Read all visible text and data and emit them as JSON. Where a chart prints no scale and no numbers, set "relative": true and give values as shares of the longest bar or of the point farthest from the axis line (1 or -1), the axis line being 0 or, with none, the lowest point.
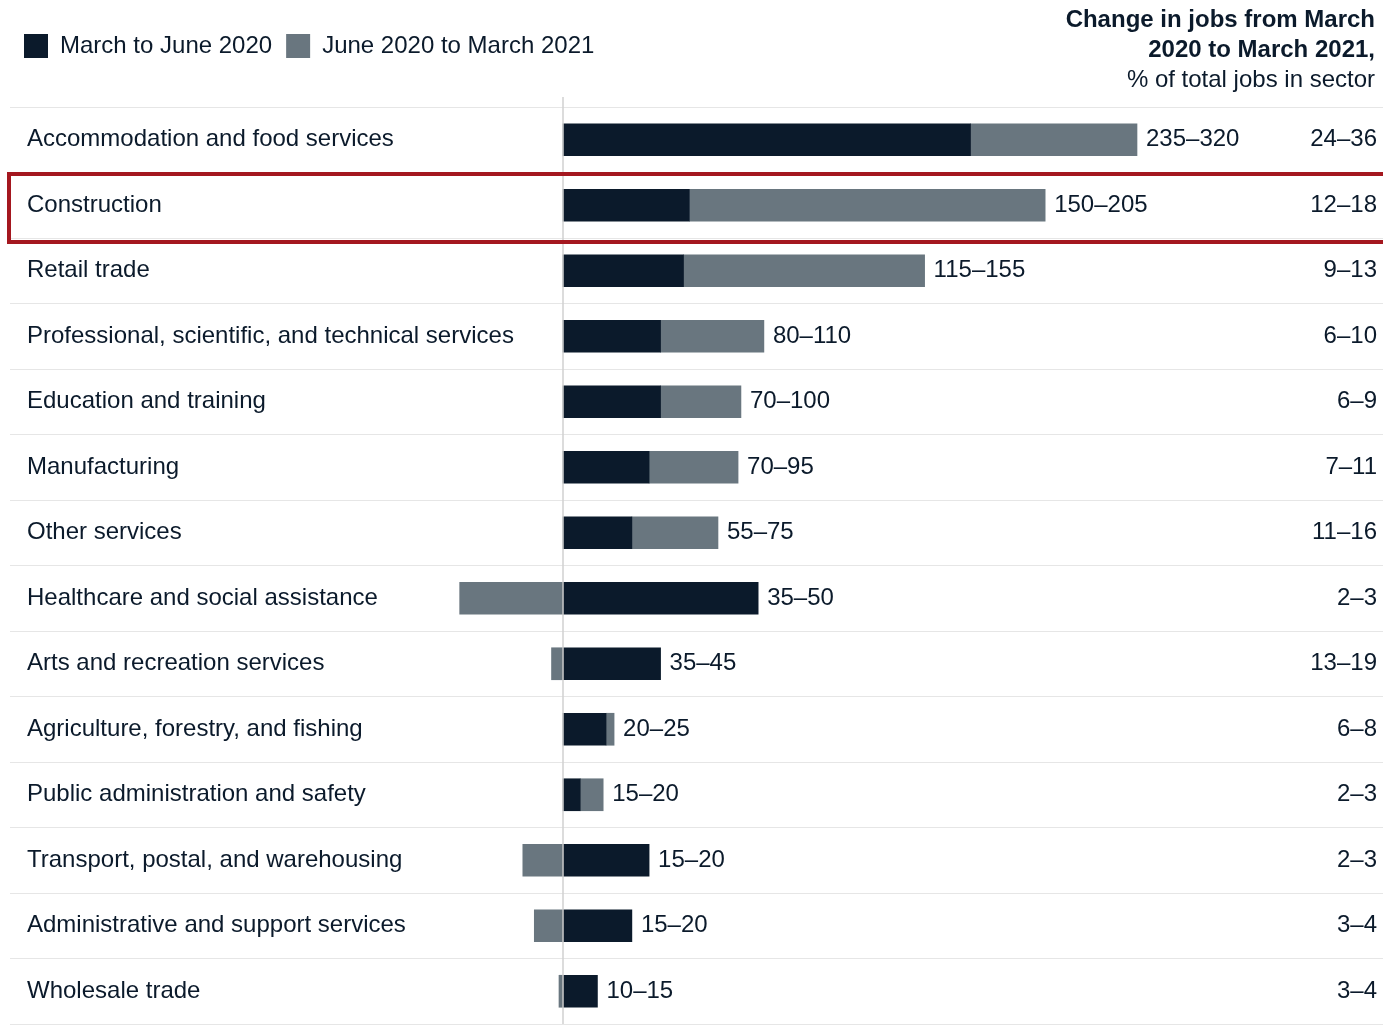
{
  "chart_data": {
    "type": "bar",
    "orientation": "horizontal",
    "stacked": true,
    "relative": true,
    "title": "Change in jobs from March 2020 to March 2021,",
    "subtitle": "% of total jobs in sector",
    "legend": "top left",
    "grid": "y",
    "categories": [
      "Accommodation and food services",
      "Construction",
      "Retail trade",
      "Professional, scientific, and technical services",
      "Education and training",
      "Manufacturing",
      "Other services",
      "Healthcare and social assistance",
      "Arts and recreation services",
      "Agriculture, forestry, and fishing",
      "Public administration and safety",
      "Transport, postal, and warehousing",
      "Administrative and support services",
      "Wholesale trade"
    ],
    "series": [
      {
        "name": "March to June 2020",
        "color": "#0b1a2b",
        "values": [
          0.71,
          0.22,
          0.21,
          0.17,
          0.17,
          0.15,
          0.12,
          0.34,
          0.17,
          0.075,
          0.03,
          0.15,
          0.12,
          0.06
        ]
      },
      {
        "name": "June 2020 to March 2021",
        "color": "#69767f",
        "values": [
          0.29,
          0.62,
          0.42,
          0.18,
          0.14,
          0.155,
          0.15,
          -0.18,
          -0.02,
          0.014,
          0.04,
          -0.07,
          -0.05,
          -0.007
        ]
      }
    ],
    "totals": [
      "235–320",
      "150–205",
      "115–155",
      "80–110",
      "70–100",
      "70–95",
      "55–75",
      "35–50",
      "35–45",
      "20–25",
      "15–20",
      "15–20",
      "15–20",
      "10–15"
    ],
    "annotations": [
      "24–36",
      "12–18",
      "9–13",
      "6–10",
      "6–9",
      "7–11",
      "11–16",
      "2–3",
      "13–19",
      "6–8",
      "2–3",
      "2–3",
      "3–4",
      "3–4"
    ]
  }
}
